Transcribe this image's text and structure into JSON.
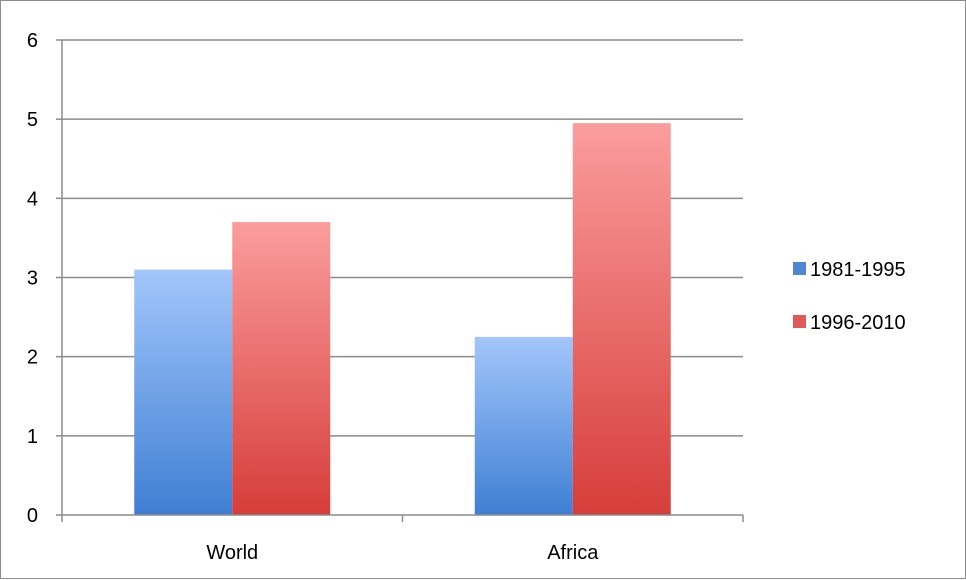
{
  "chart_data": {
    "type": "bar",
    "title": "",
    "xlabel": "",
    "ylabel": "",
    "categories": [
      "World",
      "Africa"
    ],
    "series": [
      {
        "name": "1981-1995",
        "values": [
          3.1,
          2.25
        ],
        "color_top": "#a3c6fb",
        "color_bottom": "#3f7fd3",
        "legend_color": "#4f86d6"
      },
      {
        "name": "1996-2010",
        "values": [
          3.7,
          4.95
        ],
        "color_top": "#fb9d9d",
        "color_bottom": "#d63d3a",
        "legend_color": "#e05a58"
      }
    ],
    "ylim": [
      0,
      6
    ],
    "yticks": [
      "0",
      "1",
      "2",
      "3",
      "4",
      "5",
      "6"
    ],
    "grid": true,
    "legend_position": "right"
  }
}
